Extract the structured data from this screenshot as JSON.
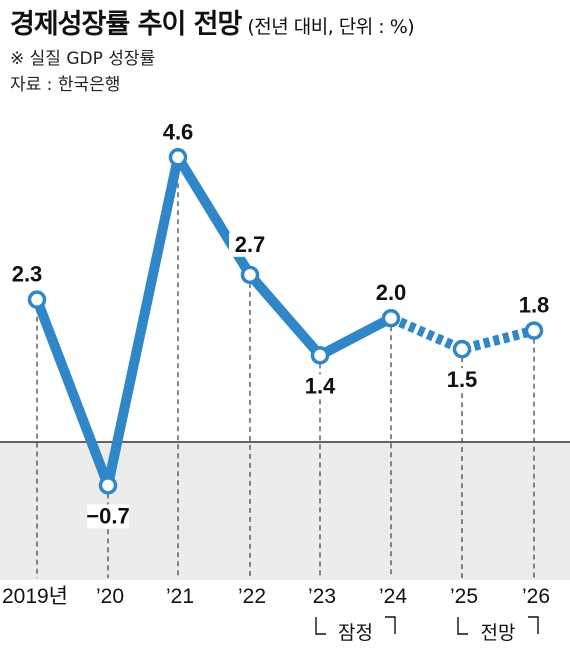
{
  "header": {
    "title": "경제성장률 추이 전망",
    "subtitle": "(전년 대비, 단위 : %)",
    "note": "※ 실질 GDP 성장률",
    "source": "자료 : 한국은행"
  },
  "chart_data": {
    "type": "line",
    "categories": [
      "2019년",
      "’20",
      "’21",
      "’22",
      "’23",
      "’24",
      "’25",
      "’26"
    ],
    "values": [
      2.3,
      -0.7,
      4.6,
      2.7,
      1.4,
      2.0,
      1.5,
      1.8
    ],
    "value_labels": [
      "2.3",
      "−0.7",
      "4.6",
      "2.7",
      "1.4",
      "2.0",
      "1.5",
      "1.8"
    ],
    "solid_through_index": 5,
    "dashed_from_index": 5,
    "brackets": [
      {
        "label": "잠정",
        "from_index": 4,
        "to_index": 5
      },
      {
        "label": "전망",
        "from_index": 6,
        "to_index": 7
      }
    ],
    "colors": {
      "line": "#2f86c8",
      "negative_area": "#ececec",
      "drop_line": "#555555"
    },
    "grid": false
  }
}
